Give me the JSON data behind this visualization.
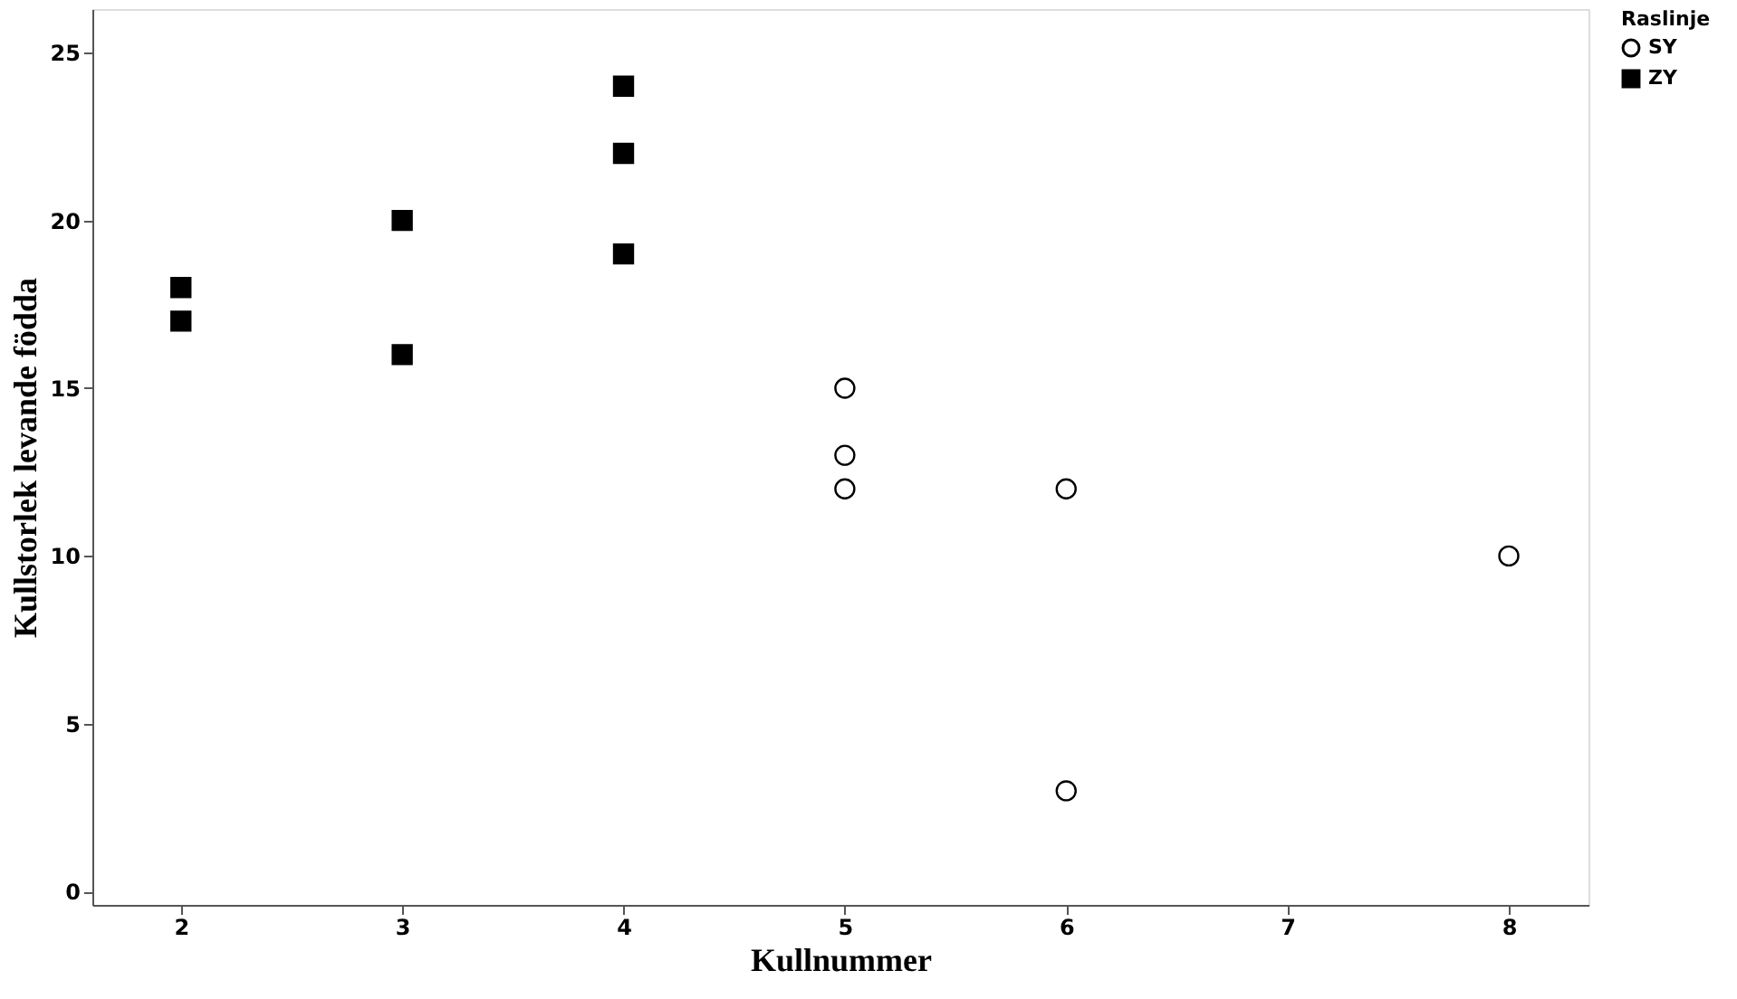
{
  "chart_data": {
    "type": "scatter",
    "xlabel": "Kullnummer",
    "ylabel": "Kullstorlek levande födda",
    "legend_title": "Raslinje",
    "series": [
      {
        "name": "SY",
        "color": "#000000",
        "marker": "circle",
        "x": [
          5,
          5,
          5,
          6,
          6,
          8
        ],
        "values": [
          15,
          13,
          12,
          12,
          3,
          10
        ]
      },
      {
        "name": "ZY",
        "color": "#000000",
        "marker": "square",
        "x": [
          2,
          2,
          3,
          3,
          4,
          4,
          4
        ],
        "values": [
          18,
          17,
          20,
          16,
          24,
          22,
          19
        ]
      }
    ],
    "xlim": [
      1.6,
      8.36
    ],
    "xticks": [
      2,
      3,
      4,
      5,
      6,
      7,
      8
    ],
    "ylim": [
      -0.4,
      26.3
    ],
    "yticks": [
      0,
      5,
      10,
      15,
      20,
      25
    ],
    "grid": false,
    "legend": "top right"
  }
}
